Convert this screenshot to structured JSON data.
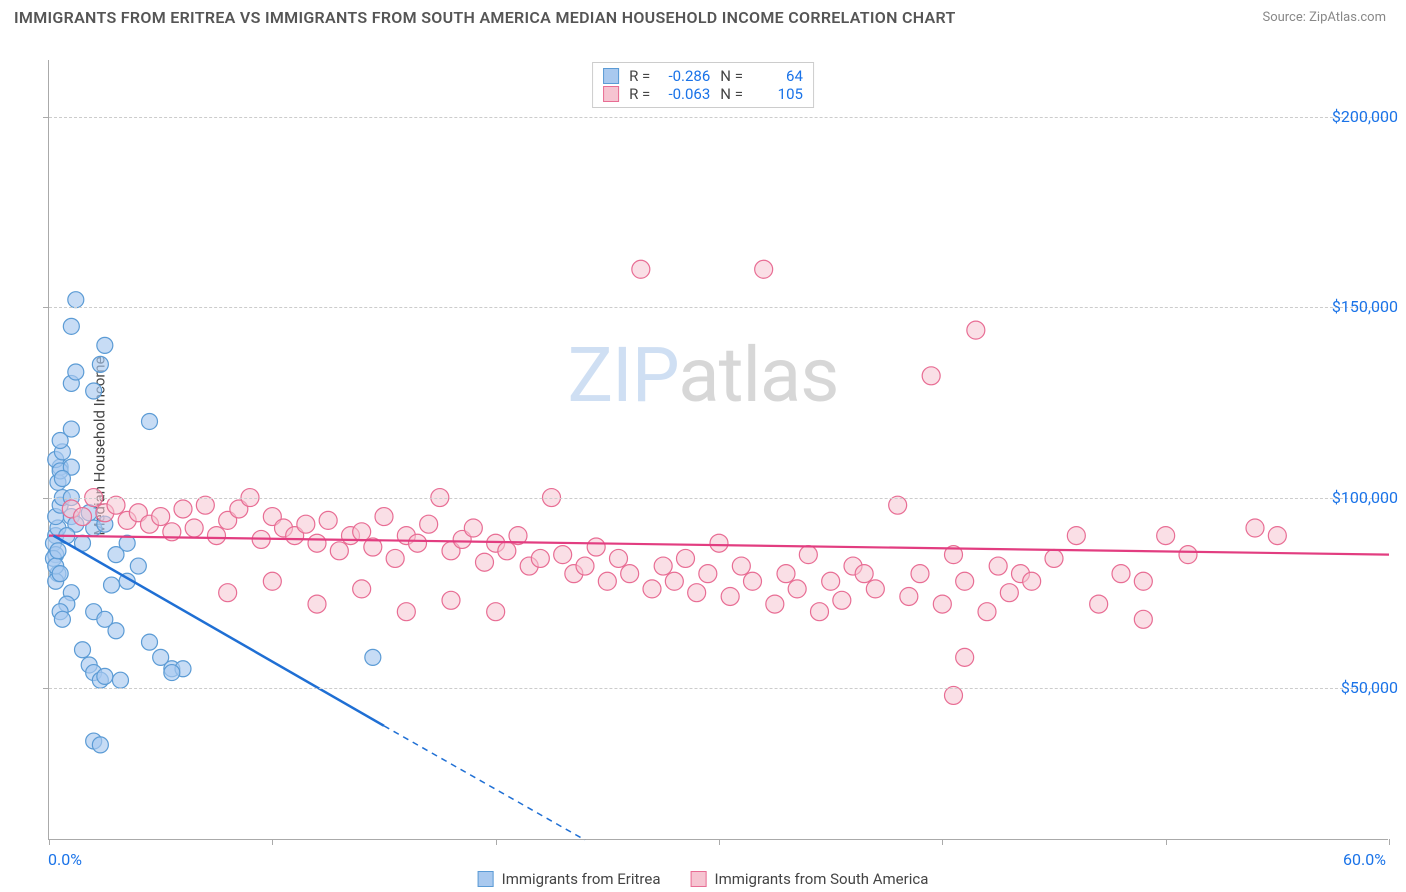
{
  "title": "IMMIGRANTS FROM ERITREA VS IMMIGRANTS FROM SOUTH AMERICA MEDIAN HOUSEHOLD INCOME CORRELATION CHART",
  "source": "Source: ZipAtlas.com",
  "watermark_zip": "ZIP",
  "watermark_atlas": "atlas",
  "chart": {
    "type": "scatter",
    "ylabel": "Median Household Income",
    "xlim_min": 0.0,
    "xlim_max": 60.0,
    "xlabel_min": "0.0%",
    "xlabel_max": "60.0%",
    "ylim_min": 10000,
    "ylim_max": 215000,
    "y_gridlines": [
      50000,
      100000,
      150000,
      200000
    ],
    "y_gridline_labels": [
      "$50,000",
      "$100,000",
      "$150,000",
      "$200,000"
    ],
    "x_ticks": [
      0,
      10,
      20,
      30,
      40,
      50,
      60
    ],
    "grid_color": "#cccccc",
    "axis_color": "#aaaaaa",
    "background_color": "#ffffff",
    "label_fontsize": 15,
    "tick_label_color": "#1a73e8"
  },
  "series": {
    "eritrea": {
      "label": "Immigrants from Eritrea",
      "fill": "#a9c9ef",
      "stroke": "#5b9bd5",
      "line_color": "#1f6fd4",
      "R": "-0.286",
      "N": "64",
      "marker_r": 8,
      "trend": {
        "x1": 0.2,
        "y1": 90000,
        "x2_solid": 15,
        "y2_solid": 40000,
        "x2_dash": 24,
        "y2_dash": 10000
      },
      "points": [
        [
          0.3,
          90000
        ],
        [
          0.4,
          92000
        ],
        [
          0.3,
          95000
        ],
        [
          0.5,
          98000
        ],
        [
          0.6,
          100000
        ],
        [
          0.2,
          88000
        ],
        [
          0.3,
          85000
        ],
        [
          0.4,
          104000
        ],
        [
          0.5,
          108000
        ],
        [
          0.3,
          110000
        ],
        [
          0.6,
          112000
        ],
        [
          0.5,
          107000
        ],
        [
          0.2,
          84000
        ],
        [
          0.4,
          80000
        ],
        [
          0.3,
          78000
        ],
        [
          1.0,
          95000
        ],
        [
          1.2,
          93000
        ],
        [
          0.8,
          90000
        ],
        [
          1.5,
          88000
        ],
        [
          1.0,
          100000
        ],
        [
          1.8,
          96000
        ],
        [
          2.0,
          92000
        ],
        [
          1.0,
          108000
        ],
        [
          0.5,
          115000
        ],
        [
          0.6,
          105000
        ],
        [
          2.5,
          93000
        ],
        [
          3.5,
          88000
        ],
        [
          3.0,
          85000
        ],
        [
          4.0,
          82000
        ],
        [
          3.5,
          78000
        ],
        [
          2.8,
          77000
        ],
        [
          1.0,
          75000
        ],
        [
          0.8,
          72000
        ],
        [
          0.5,
          70000
        ],
        [
          0.6,
          68000
        ],
        [
          2.0,
          70000
        ],
        [
          2.5,
          68000
        ],
        [
          3.0,
          65000
        ],
        [
          4.5,
          62000
        ],
        [
          5.0,
          58000
        ],
        [
          5.5,
          55000
        ],
        [
          6.0,
          55000
        ],
        [
          14.5,
          58000
        ],
        [
          1.5,
          60000
        ],
        [
          1.8,
          56000
        ],
        [
          2.0,
          54000
        ],
        [
          2.3,
          52000
        ],
        [
          2.5,
          53000
        ],
        [
          3.2,
          52000
        ],
        [
          5.5,
          54000
        ],
        [
          2.0,
          36000
        ],
        [
          2.3,
          35000
        ],
        [
          1.0,
          130000
        ],
        [
          1.2,
          133000
        ],
        [
          2.0,
          128000
        ],
        [
          2.3,
          135000
        ],
        [
          2.5,
          140000
        ],
        [
          1.0,
          145000
        ],
        [
          1.2,
          152000
        ],
        [
          1.0,
          118000
        ],
        [
          4.5,
          120000
        ],
        [
          0.3,
          82000
        ],
        [
          0.4,
          86000
        ],
        [
          0.5,
          80000
        ]
      ]
    },
    "south_america": {
      "label": "Immigrants from South America",
      "fill": "#f6c4d1",
      "stroke": "#e86d94",
      "line_color": "#e23d80",
      "R": "-0.063",
      "N": "105",
      "marker_r": 9,
      "trend": {
        "x1": 0.0,
        "y1": 90000,
        "x2": 60.0,
        "y2": 85000
      },
      "points": [
        [
          1.0,
          97000
        ],
        [
          1.5,
          95000
        ],
        [
          2.0,
          100000
        ],
        [
          2.5,
          96000
        ],
        [
          3.0,
          98000
        ],
        [
          3.5,
          94000
        ],
        [
          4.0,
          96000
        ],
        [
          4.5,
          93000
        ],
        [
          5.0,
          95000
        ],
        [
          5.5,
          91000
        ],
        [
          6.0,
          97000
        ],
        [
          6.5,
          92000
        ],
        [
          7.0,
          98000
        ],
        [
          7.5,
          90000
        ],
        [
          8.0,
          94000
        ],
        [
          8.5,
          97000
        ],
        [
          9.0,
          100000
        ],
        [
          9.5,
          89000
        ],
        [
          10.0,
          95000
        ],
        [
          10.5,
          92000
        ],
        [
          11.0,
          90000
        ],
        [
          11.5,
          93000
        ],
        [
          12.0,
          88000
        ],
        [
          12.5,
          94000
        ],
        [
          13.0,
          86000
        ],
        [
          13.5,
          90000
        ],
        [
          14.0,
          91000
        ],
        [
          14.5,
          87000
        ],
        [
          15.0,
          95000
        ],
        [
          15.5,
          84000
        ],
        [
          16.0,
          90000
        ],
        [
          16.5,
          88000
        ],
        [
          17.0,
          93000
        ],
        [
          17.5,
          100000
        ],
        [
          18.0,
          86000
        ],
        [
          18.5,
          89000
        ],
        [
          19.0,
          92000
        ],
        [
          19.5,
          83000
        ],
        [
          20.0,
          88000
        ],
        [
          20.5,
          86000
        ],
        [
          21.0,
          90000
        ],
        [
          21.5,
          82000
        ],
        [
          22.0,
          84000
        ],
        [
          22.5,
          100000
        ],
        [
          23.0,
          85000
        ],
        [
          23.5,
          80000
        ],
        [
          24.0,
          82000
        ],
        [
          24.5,
          87000
        ],
        [
          25.0,
          78000
        ],
        [
          25.5,
          84000
        ],
        [
          26.0,
          80000
        ],
        [
          26.5,
          160000
        ],
        [
          27.0,
          76000
        ],
        [
          27.5,
          82000
        ],
        [
          28.0,
          78000
        ],
        [
          28.5,
          84000
        ],
        [
          29.0,
          75000
        ],
        [
          29.5,
          80000
        ],
        [
          30.0,
          88000
        ],
        [
          30.5,
          74000
        ],
        [
          31.0,
          82000
        ],
        [
          31.5,
          78000
        ],
        [
          32.0,
          160000
        ],
        [
          32.5,
          72000
        ],
        [
          33.0,
          80000
        ],
        [
          33.5,
          76000
        ],
        [
          34.0,
          85000
        ],
        [
          34.5,
          70000
        ],
        [
          35.0,
          78000
        ],
        [
          35.5,
          73000
        ],
        [
          36.0,
          82000
        ],
        [
          36.5,
          80000
        ],
        [
          37.0,
          76000
        ],
        [
          38.0,
          98000
        ],
        [
          38.5,
          74000
        ],
        [
          39.0,
          80000
        ],
        [
          39.5,
          132000
        ],
        [
          40.0,
          72000
        ],
        [
          40.5,
          85000
        ],
        [
          41.0,
          78000
        ],
        [
          41.5,
          144000
        ],
        [
          42.0,
          70000
        ],
        [
          42.5,
          82000
        ],
        [
          43.0,
          75000
        ],
        [
          43.5,
          80000
        ],
        [
          44.0,
          78000
        ],
        [
          45.0,
          84000
        ],
        [
          46.0,
          90000
        ],
        [
          47.0,
          72000
        ],
        [
          48.0,
          80000
        ],
        [
          49.0,
          78000
        ],
        [
          50.0,
          90000
        ],
        [
          51.0,
          85000
        ],
        [
          40.5,
          48000
        ],
        [
          41.0,
          58000
        ],
        [
          49.0,
          68000
        ],
        [
          54.0,
          92000
        ],
        [
          55.0,
          90000
        ],
        [
          8.0,
          75000
        ],
        [
          10.0,
          78000
        ],
        [
          12.0,
          72000
        ],
        [
          14.0,
          76000
        ],
        [
          16.0,
          70000
        ],
        [
          18.0,
          73000
        ],
        [
          20.0,
          70000
        ]
      ]
    }
  },
  "stats_labels": {
    "r": "R =",
    "n": "N ="
  },
  "legend": {
    "s1": "Immigrants from Eritrea",
    "s2": "Immigrants from South America"
  }
}
